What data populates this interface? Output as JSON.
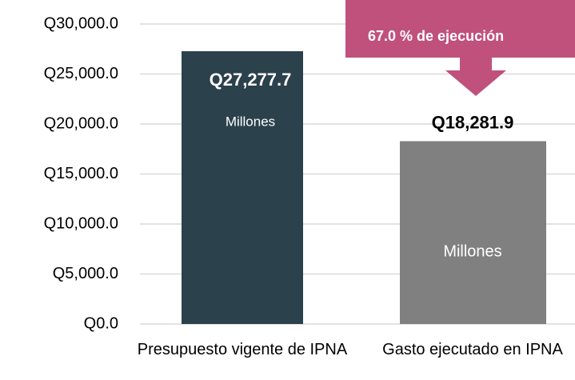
{
  "chart_data": {
    "type": "bar",
    "categories": [
      "Presupuesto vigente de IPNA",
      "Gasto ejecutado en IPNA"
    ],
    "values": [
      27277.7,
      18281.9
    ],
    "value_labels": [
      "Q27,277.7",
      "Q18,281.9"
    ],
    "colors": [
      "#2b414c",
      "#808080"
    ],
    "ylim": [
      0,
      30000
    ],
    "yticks": [
      {
        "value": 0,
        "label": "Q0.0"
      },
      {
        "value": 5000,
        "label": "Q5,000.0"
      },
      {
        "value": 10000,
        "label": "Q10,000.0"
      },
      {
        "value": 15000,
        "label": "Q15,000.0"
      },
      {
        "value": 20000,
        "label": "Q20,000.0"
      },
      {
        "value": 25000,
        "label": "Q25,000.0"
      },
      {
        "value": 30000,
        "label": "Q30,000.0"
      }
    ],
    "grid": true,
    "annotations": [
      "Millones",
      "Millones",
      "67.0 % de ejecución"
    ]
  }
}
